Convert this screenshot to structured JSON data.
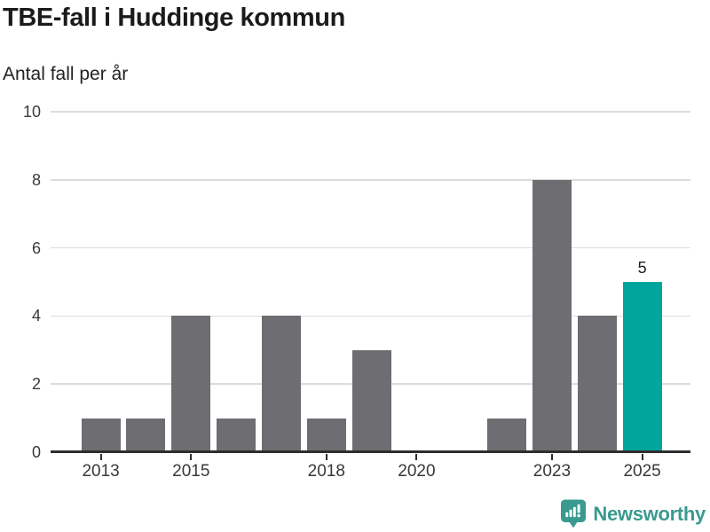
{
  "header": {
    "title": "TBE-fall i Huddinge kommun",
    "subtitle": "Antal fall per år"
  },
  "chart_data": {
    "type": "bar",
    "title": "TBE-fall i Huddinge kommun",
    "ylabel": "Antal fall per år",
    "categories": [
      2013,
      2014,
      2015,
      2016,
      2017,
      2018,
      2019,
      2020,
      2021,
      2022,
      2023,
      2024,
      2025
    ],
    "values": [
      1,
      1,
      4,
      1,
      4,
      1,
      3,
      0,
      0,
      1,
      8,
      4,
      5
    ],
    "ylim": [
      0,
      10
    ],
    "yticks": [
      0,
      2,
      4,
      6,
      8,
      10
    ],
    "xticks": [
      2013,
      2015,
      2018,
      2020,
      2023,
      2025
    ],
    "grid": "horizontal",
    "legend": "none",
    "highlight_category": 2025,
    "bar_label": {
      "category": 2025,
      "text": "5"
    },
    "colors": {
      "bar": "#6e6d72",
      "highlight": "#00a69b",
      "gridline": "#dcdcdc",
      "axis": "#2e2e2e"
    }
  },
  "footer": {
    "brand": "Newsworthy",
    "brand_color": "#3a9a90"
  }
}
